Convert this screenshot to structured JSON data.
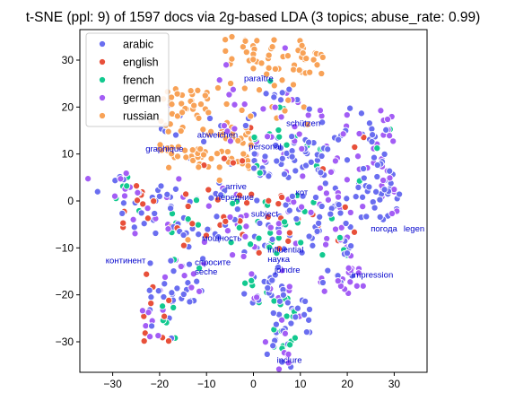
{
  "chart_data": {
    "type": "scatter",
    "title": "t-SNE (ppl: 9) of 1597 docs via 2g-based LDA (3 topics; abuse_rate: 0.99)",
    "xlabel": "",
    "ylabel": "",
    "xlim": [
      -37,
      37
    ],
    "ylim": [
      -36.5,
      36.5
    ],
    "xticks": [
      -30,
      -20,
      -10,
      0,
      10,
      20,
      30
    ],
    "yticks": [
      -30,
      -20,
      -10,
      0,
      10,
      20,
      30
    ],
    "grid": false,
    "legend_position": "top-left",
    "series": [
      {
        "name": "arabic",
        "color": "#6a6ef0"
      },
      {
        "name": "english",
        "color": "#e8503a"
      },
      {
        "name": "french",
        "color": "#12c98f"
      },
      {
        "name": "german",
        "color": "#a35df5"
      },
      {
        "name": "russian",
        "color": "#f8a257"
      }
    ],
    "annotations": [
      {
        "text": "paraître",
        "x": -2,
        "y": 25.5
      },
      {
        "text": "schützen",
        "x": 7,
        "y": 16
      },
      {
        "text": "abweichen",
        "x": -12,
        "y": 13.5
      },
      {
        "text": "graphique",
        "x": -23,
        "y": 10.5
      },
      {
        "text": "personal",
        "x": -1,
        "y": 11
      },
      {
        "text": "arrive",
        "x": -6,
        "y": 2.5
      },
      {
        "text": "передние",
        "x": -8,
        "y": 0.2
      },
      {
        "text": "кот",
        "x": 9,
        "y": 1.2
      },
      {
        "text": "subject",
        "x": -0.5,
        "y": -3.3
      },
      {
        "text": "погода",
        "x": 25,
        "y": -6.5
      },
      {
        "text": "legen",
        "x": 32,
        "y": -6.5
      },
      {
        "text": "мощность",
        "x": -11,
        "y": -8.5
      },
      {
        "text": "influential",
        "x": 3,
        "y": -11
      },
      {
        "text": "наука",
        "x": 3,
        "y": -13
      },
      {
        "text": "континент",
        "x": -31.5,
        "y": -13.3
      },
      {
        "text": "спросите",
        "x": -12.5,
        "y": -13.7
      },
      {
        "text": "joindre",
        "x": 4.5,
        "y": -15.3
      },
      {
        "text": "seche",
        "x": -12.5,
        "y": -15.7
      },
      {
        "text": "impression",
        "x": 21,
        "y": -16.3
      },
      {
        "text": "inclure",
        "x": 5,
        "y": -34.5
      }
    ]
  }
}
